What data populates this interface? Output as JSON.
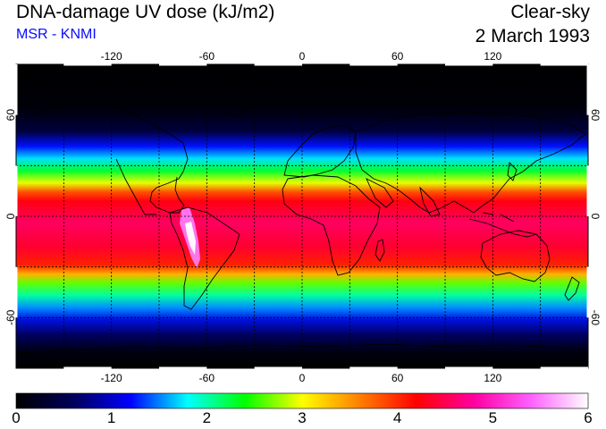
{
  "header": {
    "title": "DNA-damage UV dose (kJ/m2)",
    "subtitle": "MSR - KNMI",
    "condition": "Clear-sky",
    "date": "2 March 1993"
  },
  "axes": {
    "longitude_ticks": [
      "-120",
      "-60",
      "0",
      "60",
      "120"
    ],
    "latitude_ticks": [
      "60",
      "0",
      "-60"
    ]
  },
  "colorbar": {
    "ticks": [
      "0",
      "1",
      "2",
      "3",
      "4",
      "5",
      "6"
    ],
    "range": [
      0,
      6
    ],
    "colors": [
      "#000000",
      "#00005a",
      "#0000ff",
      "#00ffff",
      "#00ff00",
      "#ffff00",
      "#ff8000",
      "#ff0000",
      "#ff00a0",
      "#ff60ff",
      "#ffffff"
    ]
  },
  "map": {
    "lon_range": [
      -180,
      180
    ],
    "lat_range": [
      -90,
      90
    ],
    "grid_lons": [
      -150,
      -120,
      -90,
      -60,
      -30,
      0,
      30,
      60,
      90,
      120,
      150
    ],
    "grid_lats": [
      -60,
      -30,
      0,
      30,
      60
    ]
  }
}
